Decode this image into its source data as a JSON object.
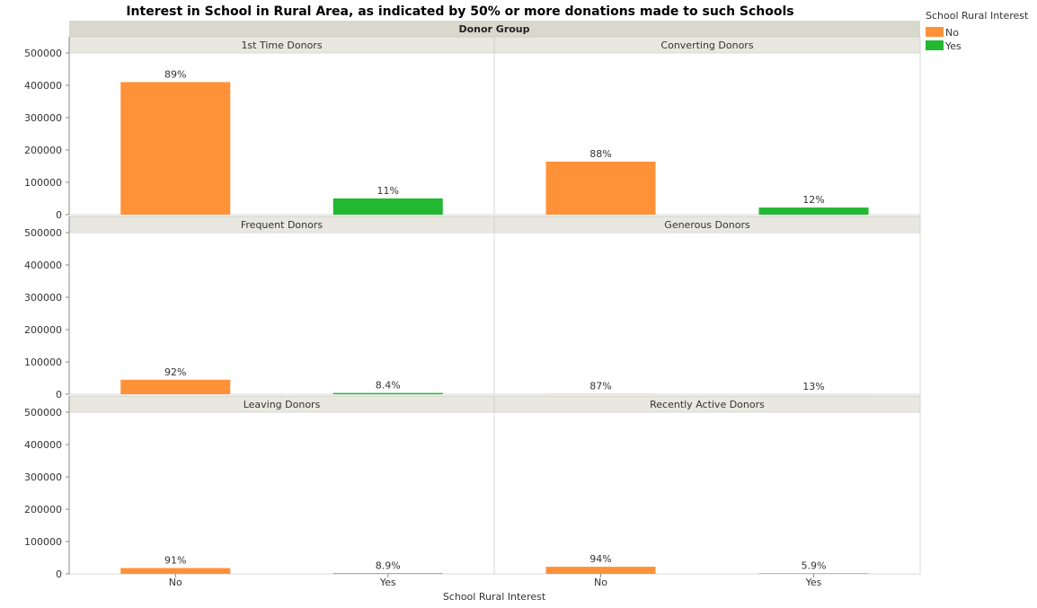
{
  "chart_data": {
    "type": "bar",
    "title": "Interest in School in Rural Area, as indicated by 50% or more donations made to such Schools",
    "facet_header": "Donor Group",
    "xlabel": "School Rural Interest",
    "ylabel": "",
    "categories": [
      "No",
      "Yes"
    ],
    "ylim": [
      0,
      500000
    ],
    "yticks": [
      0,
      100000,
      200000,
      300000,
      400000,
      500000
    ],
    "legend": {
      "title": "School Rural Interest",
      "position": "top-right",
      "items": [
        {
          "label": "No",
          "color": "#ff9138"
        },
        {
          "label": "Yes",
          "color": "#22b832"
        }
      ]
    },
    "colors": {
      "No": "#ff9138",
      "Yes": "#22b832"
    },
    "facets": [
      {
        "name": "1st Time Donors",
        "values": [
          410000,
          50000
        ],
        "labels": [
          "89%",
          "11%"
        ]
      },
      {
        "name": "Converting Donors",
        "values": [
          164000,
          22000
        ],
        "labels": [
          "88%",
          "12%"
        ]
      },
      {
        "name": "Frequent Donors",
        "values": [
          45000,
          4000
        ],
        "labels": [
          "92%",
          "8.4%"
        ]
      },
      {
        "name": "Generous Donors",
        "values": [
          700,
          100
        ],
        "labels": [
          "87%",
          "13%"
        ]
      },
      {
        "name": "Leaving Donors",
        "values": [
          18000,
          1800
        ],
        "labels": [
          "91%",
          "8.9%"
        ]
      },
      {
        "name": "Recently Active Donors",
        "values": [
          22000,
          1400
        ],
        "labels": [
          "94%",
          "5.9%"
        ]
      }
    ],
    "grid": false
  }
}
